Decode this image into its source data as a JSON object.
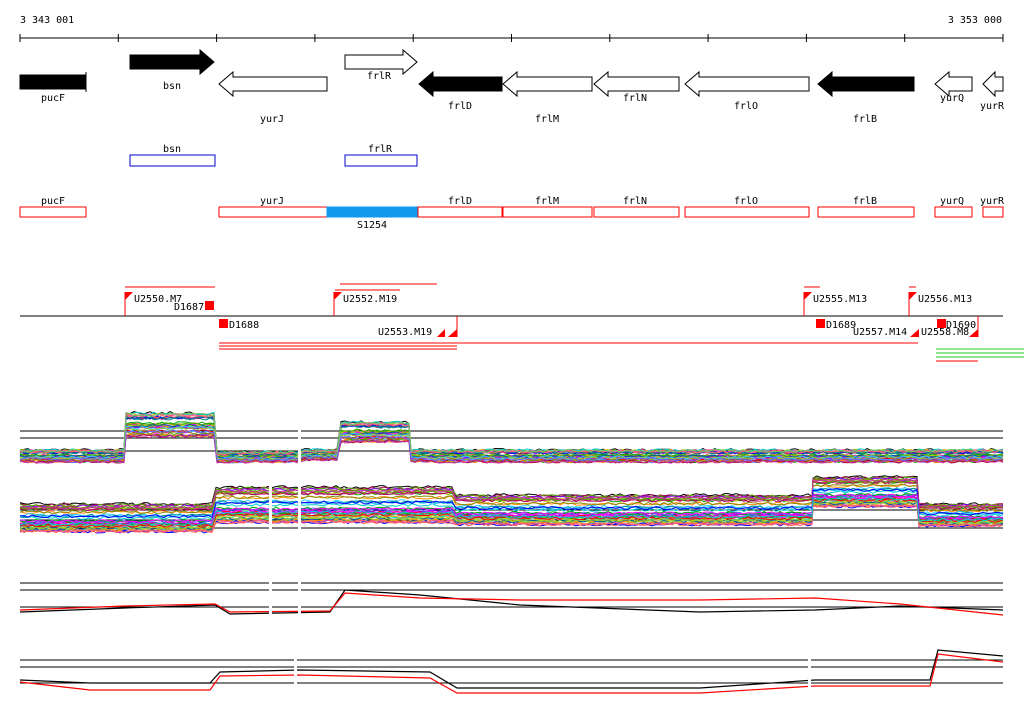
{
  "ruler": {
    "start_label": "3 343 001",
    "end_label": "3 353 000"
  },
  "genes": [
    {
      "name": "pucF",
      "strand": "+",
      "fill": "#000000",
      "label_row": "below"
    },
    {
      "name": "bsn",
      "strand": "+",
      "fill": "#000000",
      "label_row": "below"
    },
    {
      "name": "yurJ",
      "strand": "-",
      "fill": "#ffffff",
      "label_row": "low"
    },
    {
      "name": "frlR",
      "strand": "+",
      "fill": "#ffffff",
      "label_row": "below"
    },
    {
      "name": "frlD",
      "strand": "-",
      "fill": "#000000",
      "label_row": "below"
    },
    {
      "name": "frlM",
      "strand": "-",
      "fill": "#ffffff",
      "label_row": "low"
    },
    {
      "name": "frlN",
      "strand": "-",
      "fill": "#ffffff",
      "label_row": "below"
    },
    {
      "name": "frlO",
      "strand": "-",
      "fill": "#ffffff",
      "label_row": "below"
    },
    {
      "name": "frlB",
      "strand": "-",
      "fill": "#000000",
      "label_row": "low"
    },
    {
      "name": "yurQ",
      "strand": "-",
      "fill": "#ffffff",
      "label_row": "below"
    },
    {
      "name": "yurR",
      "strand": "-",
      "fill": "#ffffff",
      "label_row": "below"
    }
  ],
  "upper_boxes": [
    {
      "name": "bsn",
      "color": "#0000cc"
    },
    {
      "name": "frlR",
      "color": "#0000cc"
    }
  ],
  "lower_boxes": [
    {
      "name": "pucF"
    },
    {
      "name": "yurJ"
    },
    {
      "name": "frlD"
    },
    {
      "name": "frlM"
    },
    {
      "name": "frlN"
    },
    {
      "name": "frlO"
    },
    {
      "name": "frlB"
    },
    {
      "name": "yurQ"
    },
    {
      "name": "yurR"
    }
  ],
  "highlight_segment": {
    "label": "S1254",
    "color": "#1199ee"
  },
  "features": {
    "above": [
      "U2550.M7",
      "D1687",
      "U2552.M19",
      "U2555.M13",
      "U2556.M13"
    ],
    "below": [
      "D1688",
      "U2553.M19",
      "D1689",
      "U2557.M14",
      "D1690",
      "U2558.M8"
    ]
  },
  "colors": {
    "red": "#ff0000",
    "black": "#000000"
  }
}
